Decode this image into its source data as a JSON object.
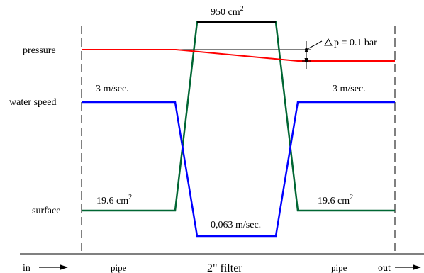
{
  "labels": {
    "pressure": "pressure",
    "water_speed": "water speed",
    "surface": "surface",
    "filter_area": "950 cm",
    "filter_area_exp": "2",
    "delta_p": "p = 0.1 bar",
    "speed_in": "3 m/sec.",
    "speed_out": "3 m/sec.",
    "surface_in": "19.6 cm",
    "surface_in_exp": "2",
    "surface_out": "19.6 cm",
    "surface_out_exp": "2",
    "filter_speed": "0,063 m/sec.",
    "in": "in",
    "out": "out",
    "pipe_left": "pipe",
    "filter": "2\" filter",
    "pipe_right": "pipe"
  },
  "colors": {
    "pressure": "#ff0000",
    "water_speed": "#0000ff",
    "surface": "#006633",
    "filter_top": "#000000",
    "grid": "#000000"
  }
}
